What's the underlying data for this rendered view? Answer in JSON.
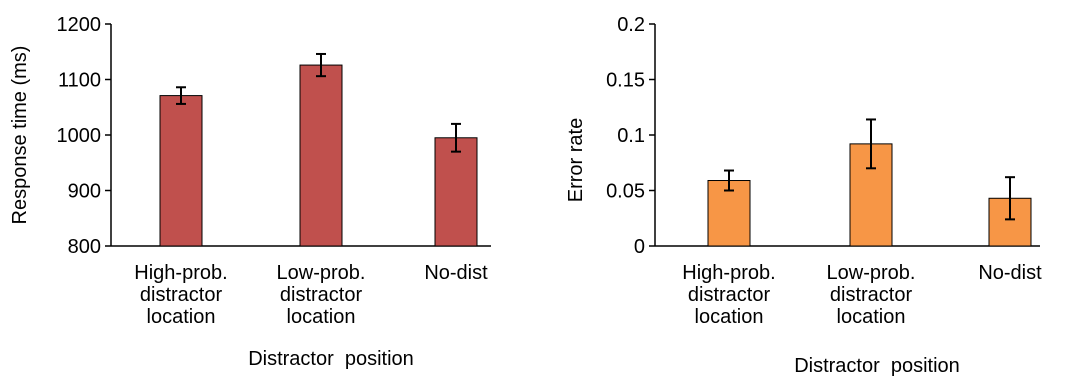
{
  "chart_data": [
    {
      "type": "bar",
      "title": "",
      "categories": [
        [
          "High-prob.",
          "distractor",
          "location"
        ],
        [
          "Low-prob.",
          "distractor",
          "location"
        ],
        [
          "No-dist"
        ]
      ],
      "values": [
        1071,
        1126,
        995
      ],
      "error": [
        15,
        20,
        25
      ],
      "xlabel": "Distractor  position",
      "ylabel": "Response time (ms)",
      "ylim": [
        800,
        1200
      ],
      "yticks": [
        800,
        900,
        1000,
        1100,
        1200
      ],
      "ytick_labels": [
        "800",
        "900",
        "1000",
        "1100",
        "1200"
      ],
      "bar_color": "#c0504d",
      "grid": false,
      "legend": "none"
    },
    {
      "type": "bar",
      "title": "",
      "categories": [
        [
          "High-prob.",
          "distractor",
          "location"
        ],
        [
          "Low-prob.",
          "distractor",
          "location"
        ],
        [
          "No-dist"
        ]
      ],
      "values": [
        0.059,
        0.092,
        0.043
      ],
      "error": [
        0.009,
        0.022,
        0.019
      ],
      "xlabel": "Distractor  position",
      "ylabel": "Error rate",
      "ylim": [
        0,
        0.2
      ],
      "yticks": [
        0,
        0.05,
        0.1,
        0.15,
        0.2
      ],
      "ytick_labels": [
        "0",
        "0.05",
        "0.1",
        "0.15",
        "0.2"
      ],
      "bar_color": "#f79646",
      "grid": false,
      "legend": "none"
    }
  ]
}
